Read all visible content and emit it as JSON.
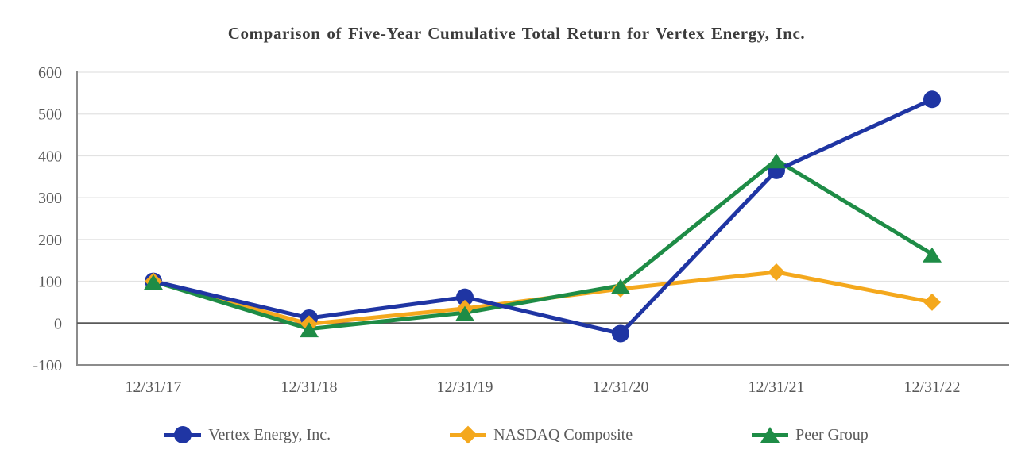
{
  "title": "Comparison of Five-Year Cumulative Total Return for Vertex Energy, Inc.",
  "chart_data": {
    "type": "line",
    "title": "Comparison of Five-Year Cumulative Total Return for Vertex Energy, Inc.",
    "categories": [
      "12/31/17",
      "12/31/18",
      "12/31/19",
      "12/31/20",
      "12/31/21",
      "12/31/22"
    ],
    "series": [
      {
        "name": "Vertex Energy, Inc.",
        "marker": "circle",
        "color": "#1F35A3",
        "values": [
          100,
          12,
          62,
          -25,
          365,
          535
        ]
      },
      {
        "name": "NASDAQ Composite",
        "marker": "diamond",
        "color": "#F4A81D",
        "values": [
          100,
          -2,
          35,
          82,
          122,
          50
        ]
      },
      {
        "name": "Peer Group",
        "marker": "triangle",
        "color": "#1E8C46",
        "values": [
          100,
          -14,
          25,
          90,
          390,
          165
        ]
      }
    ],
    "y_ticks": [
      600,
      500,
      400,
      300,
      200,
      100,
      0,
      -100
    ],
    "ylim": [
      -100,
      600
    ],
    "xlabel": "",
    "ylabel": "",
    "grid": true,
    "legend_position": "bottom",
    "colors": {
      "gridline": "#E2E2E2",
      "zero_line": "#595959",
      "axis_line": "#8C8C8C",
      "tick_text": "#595959",
      "title_text": "#3B3B3B"
    }
  }
}
